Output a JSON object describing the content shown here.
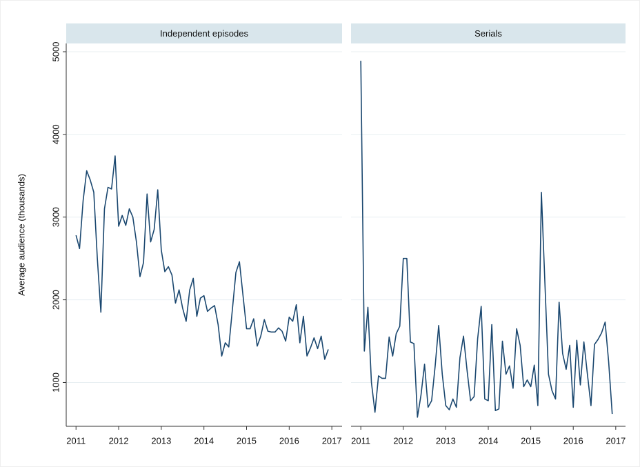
{
  "chart_data": [
    {
      "type": "line",
      "title": "Independent episodes",
      "ylabel": "Average audience (thousands)",
      "color": "#1a476f",
      "x": [
        2011,
        2011.083,
        2011.167,
        2011.25,
        2011.333,
        2011.417,
        2011.5,
        2011.583,
        2011.667,
        2011.75,
        2011.833,
        2011.917,
        2012,
        2012.083,
        2012.167,
        2012.25,
        2012.333,
        2012.417,
        2012.5,
        2012.583,
        2012.667,
        2012.75,
        2012.833,
        2012.917,
        2013,
        2013.083,
        2013.167,
        2013.25,
        2013.333,
        2013.417,
        2013.5,
        2013.583,
        2013.667,
        2013.75,
        2013.833,
        2013.917,
        2014,
        2014.083,
        2014.167,
        2014.25,
        2014.333,
        2014.417,
        2014.5,
        2014.583,
        2014.667,
        2014.75,
        2014.833,
        2014.917,
        2015,
        2015.083,
        2015.167,
        2015.25,
        2015.333,
        2015.417,
        2015.5,
        2015.583,
        2015.667,
        2015.75,
        2015.833,
        2015.917,
        2016,
        2016.083,
        2016.167,
        2016.25,
        2016.333,
        2016.417,
        2016.5,
        2016.583,
        2016.667,
        2016.75,
        2016.833,
        2016.917
      ],
      "values": [
        2780,
        2620,
        3200,
        3560,
        3450,
        3300,
        2500,
        1850,
        3100,
        3360,
        3340,
        3740,
        2890,
        3020,
        2900,
        3100,
        3000,
        2700,
        2280,
        2450,
        3280,
        2700,
        2850,
        3330,
        2600,
        2340,
        2400,
        2300,
        1960,
        2120,
        1900,
        1740,
        2120,
        2260,
        1800,
        2020,
        2050,
        1860,
        1900,
        1930,
        1700,
        1320,
        1480,
        1430,
        1880,
        2330,
        2460,
        2050,
        1650,
        1650,
        1770,
        1440,
        1560,
        1760,
        1620,
        1610,
        1610,
        1660,
        1620,
        1500,
        1790,
        1740,
        1940,
        1480,
        1800,
        1320,
        1420,
        1540,
        1410,
        1560,
        1280,
        1400
      ],
      "xlim": [
        2010.77,
        2017.24
      ],
      "xticks": [
        2011,
        2012,
        2013,
        2014,
        2015,
        2016,
        2017
      ],
      "ylim": [
        470,
        5100
      ],
      "yticks": [
        1000,
        2000,
        3000,
        4000,
        5000
      ],
      "grid": true
    },
    {
      "type": "line",
      "title": "Serials",
      "color": "#1a476f",
      "x": [
        2011,
        2011.083,
        2011.167,
        2011.25,
        2011.333,
        2011.417,
        2011.5,
        2011.583,
        2011.667,
        2011.75,
        2011.833,
        2011.917,
        2012,
        2012.083,
        2012.167,
        2012.25,
        2012.333,
        2012.417,
        2012.5,
        2012.583,
        2012.667,
        2012.75,
        2012.833,
        2012.917,
        2013,
        2013.083,
        2013.167,
        2013.25,
        2013.333,
        2013.417,
        2013.5,
        2013.583,
        2013.667,
        2013.75,
        2013.833,
        2013.917,
        2014,
        2014.083,
        2014.167,
        2014.25,
        2014.333,
        2014.417,
        2014.5,
        2014.583,
        2014.667,
        2014.75,
        2014.833,
        2014.917,
        2015,
        2015.083,
        2015.167,
        2015.25,
        2015.333,
        2015.417,
        2015.5,
        2015.583,
        2015.667,
        2015.75,
        2015.833,
        2015.917,
        2016,
        2016.083,
        2016.167,
        2016.25,
        2016.333,
        2016.417,
        2016.5,
        2016.583,
        2016.667,
        2016.75,
        2016.833,
        2016.917
      ],
      "values": [
        4890,
        1380,
        1910,
        1000,
        640,
        1080,
        1050,
        1050,
        1550,
        1320,
        1590,
        1680,
        2500,
        2500,
        1490,
        1470,
        580,
        850,
        1220,
        700,
        780,
        1200,
        1690,
        1100,
        720,
        670,
        800,
        700,
        1300,
        1560,
        1150,
        780,
        830,
        1530,
        1920,
        800,
        780,
        1700,
        660,
        680,
        1500,
        1100,
        1200,
        930,
        1650,
        1450,
        950,
        1030,
        950,
        1210,
        720,
        3300,
        2200,
        1100,
        900,
        800,
        1970,
        1350,
        1160,
        1450,
        700,
        1510,
        970,
        1490,
        1100,
        720,
        1460,
        1520,
        1600,
        1730,
        1250,
        620
      ],
      "xlim": [
        2010.77,
        2017.23
      ],
      "xticks": [
        2011,
        2012,
        2013,
        2014,
        2015,
        2016,
        2017
      ],
      "ylim": [
        470,
        5100
      ],
      "yticks": [
        1000,
        2000,
        3000,
        4000,
        5000
      ],
      "grid": true
    }
  ]
}
